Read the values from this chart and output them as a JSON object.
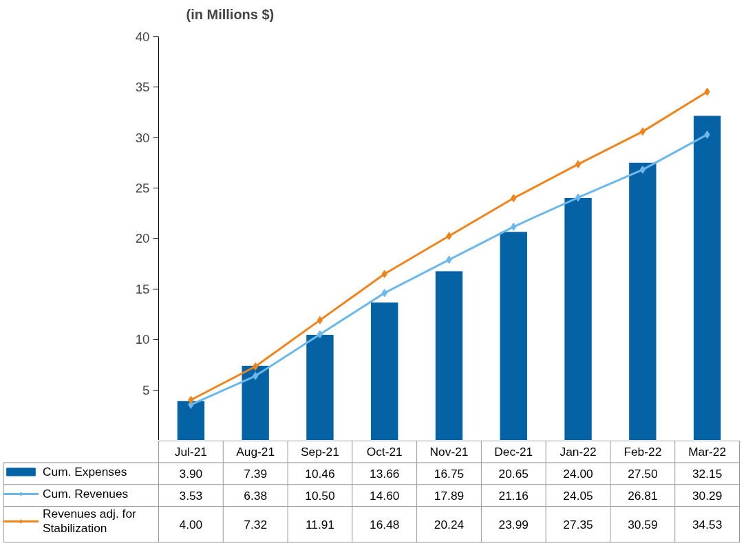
{
  "chart_data": {
    "type": "bar",
    "title": "(in Millions $)",
    "categories": [
      "Jul-21",
      "Aug-21",
      "Sep-21",
      "Oct-21",
      "Nov-21",
      "Dec-21",
      "Jan-22",
      "Feb-22",
      "Mar-22"
    ],
    "series": [
      {
        "name": "Cum. Expenses",
        "color": "#0563a5",
        "values": [
          3.9,
          7.39,
          10.46,
          13.66,
          16.75,
          20.65,
          24.0,
          27.5,
          32.15
        ],
        "value_labels": [
          "3.90",
          "7.39",
          "10.46",
          "13.66",
          "16.75",
          "20.65",
          "24.00",
          "27.50",
          "32.15"
        ]
      },
      {
        "name": "Cum. Revenues",
        "type": "line",
        "color": "#6cb8e8",
        "values": [
          3.53,
          6.38,
          10.5,
          14.6,
          17.89,
          21.16,
          24.05,
          26.81,
          30.29
        ],
        "value_labels": [
          "3.53",
          "6.38",
          "10.50",
          "14.60",
          "17.89",
          "21.16",
          "24.05",
          "26.81",
          "30.29"
        ]
      },
      {
        "name": "Revenues adj. for Stabilization",
        "type": "line",
        "color": "#f0841c",
        "values": [
          4.0,
          7.32,
          11.91,
          16.48,
          20.24,
          23.99,
          27.35,
          30.59,
          34.53
        ],
        "value_labels": [
          "4.00",
          "7.32",
          "11.91",
          "16.48",
          "20.24",
          "23.99",
          "27.35",
          "30.59",
          "34.53"
        ]
      }
    ],
    "ylim": [
      0,
      40
    ],
    "yticks": [
      {
        "value": 0,
        "label": null
      },
      5,
      10,
      15,
      20,
      25,
      30,
      35,
      40
    ],
    "grid": false,
    "legend": "bottom",
    "marker": "diamond",
    "line_style": "solid"
  }
}
